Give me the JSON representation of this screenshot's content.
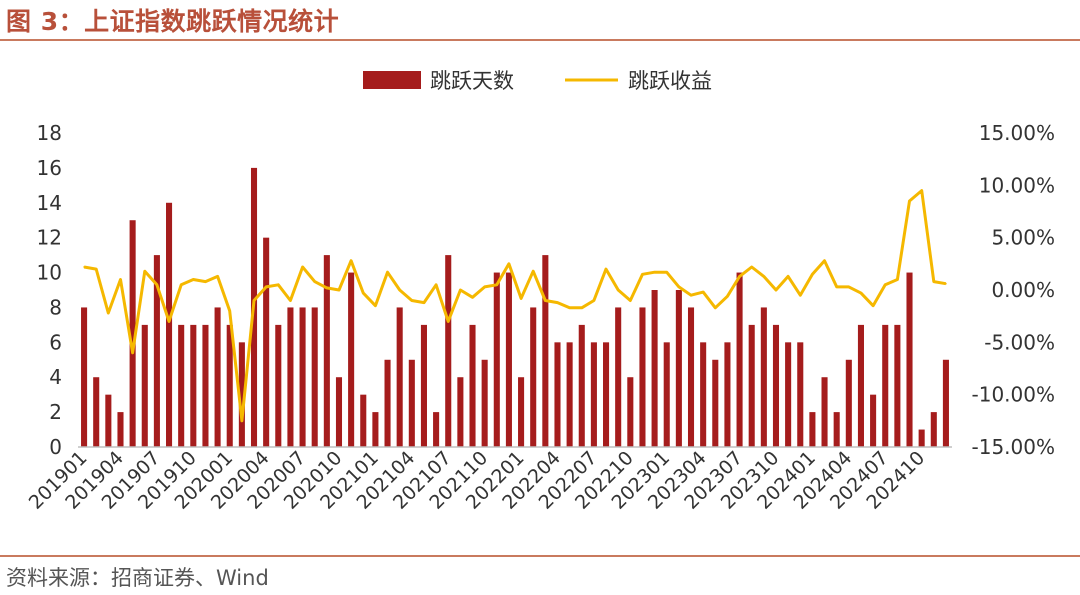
{
  "figure": {
    "title": "图 3：上证指数跳跃情况统计",
    "source": "资料来源：招商证券、Wind"
  },
  "colors": {
    "bar": "#a51c1c",
    "line": "#f5b800",
    "accent": "#c97a5e"
  },
  "chart_data": {
    "type": "bar",
    "title": "",
    "legend_position": "top-center",
    "grid": false,
    "categories": [
      "201901",
      "201902",
      "201903",
      "201904",
      "201905",
      "201906",
      "201907",
      "201908",
      "201909",
      "201910",
      "201911",
      "201912",
      "202001",
      "202002",
      "202003",
      "202004",
      "202005",
      "202006",
      "202007",
      "202008",
      "202009",
      "202010",
      "202011",
      "202012",
      "202101",
      "202102",
      "202103",
      "202104",
      "202105",
      "202106",
      "202107",
      "202108",
      "202109",
      "202110",
      "202111",
      "202112",
      "202201",
      "202202",
      "202203",
      "202204",
      "202205",
      "202206",
      "202207",
      "202208",
      "202209",
      "202210",
      "202211",
      "202212",
      "202301",
      "202302",
      "202303",
      "202304",
      "202305",
      "202306",
      "202307",
      "202308",
      "202309",
      "202310",
      "202311",
      "202312",
      "202401",
      "202402",
      "202403",
      "202404",
      "202405",
      "202406",
      "202407",
      "202408",
      "202409",
      "202410",
      "202411",
      "202412"
    ],
    "x_tick_labels": [
      "201901",
      "201904",
      "201907",
      "201910",
      "202001",
      "202004",
      "202007",
      "202010",
      "202101",
      "202104",
      "202107",
      "202110",
      "202201",
      "202204",
      "202207",
      "202210",
      "202301",
      "202304",
      "202307",
      "202310",
      "202401",
      "202404",
      "202407",
      "202410"
    ],
    "series": [
      {
        "name": "跳跃天数",
        "type": "bar",
        "axis": "left",
        "values": [
          8,
          4,
          3,
          2,
          13,
          7,
          11,
          14,
          7,
          7,
          7,
          8,
          7,
          6,
          16,
          12,
          7,
          8,
          8,
          8,
          11,
          4,
          10,
          3,
          2,
          5,
          8,
          5,
          7,
          2,
          11,
          4,
          7,
          5,
          10,
          10,
          4,
          8,
          11,
          6,
          6,
          7,
          6,
          6,
          8,
          4,
          8,
          9,
          6,
          9,
          8,
          6,
          5,
          6,
          10,
          7,
          8,
          7,
          6,
          6,
          2,
          4,
          2,
          5,
          7,
          3,
          7,
          7,
          10,
          1,
          2,
          5
        ]
      },
      {
        "name": "跳跃收益",
        "type": "line",
        "axis": "right",
        "values": [
          2.2,
          2.0,
          -2.2,
          1.0,
          -6.0,
          1.8,
          0.5,
          -3.0,
          0.5,
          1.0,
          0.8,
          1.3,
          -2.0,
          -12.5,
          -1.0,
          0.3,
          0.5,
          -1.0,
          2.2,
          0.8,
          0.2,
          0.0,
          2.8,
          -0.3,
          -1.5,
          1.7,
          0.0,
          -1.0,
          -1.2,
          0.5,
          -3.0,
          0.0,
          -0.7,
          0.3,
          0.5,
          2.5,
          -0.8,
          1.8,
          -1.0,
          -1.2,
          -1.7,
          -1.7,
          -1.0,
          2.0,
          0.0,
          -1.0,
          1.5,
          1.7,
          1.7,
          0.3,
          -0.5,
          -0.2,
          -1.7,
          -0.6,
          1.3,
          2.2,
          1.3,
          0.0,
          1.3,
          -0.5,
          1.5,
          2.8,
          0.3,
          0.3,
          -0.3,
          -1.5,
          0.5,
          1.0,
          8.5,
          9.5,
          0.8,
          0.6
        ]
      }
    ],
    "y_left": {
      "min": 0,
      "max": 18,
      "step": 2,
      "ticks": [
        "0",
        "2",
        "4",
        "6",
        "8",
        "10",
        "12",
        "14",
        "16",
        "18"
      ]
    },
    "y_right": {
      "min": -15,
      "max": 15,
      "step": 5,
      "ticks": [
        "-15.00%",
        "-10.00%",
        "-5.00%",
        "0.00%",
        "5.00%",
        "10.00%",
        "15.00%"
      ]
    }
  }
}
